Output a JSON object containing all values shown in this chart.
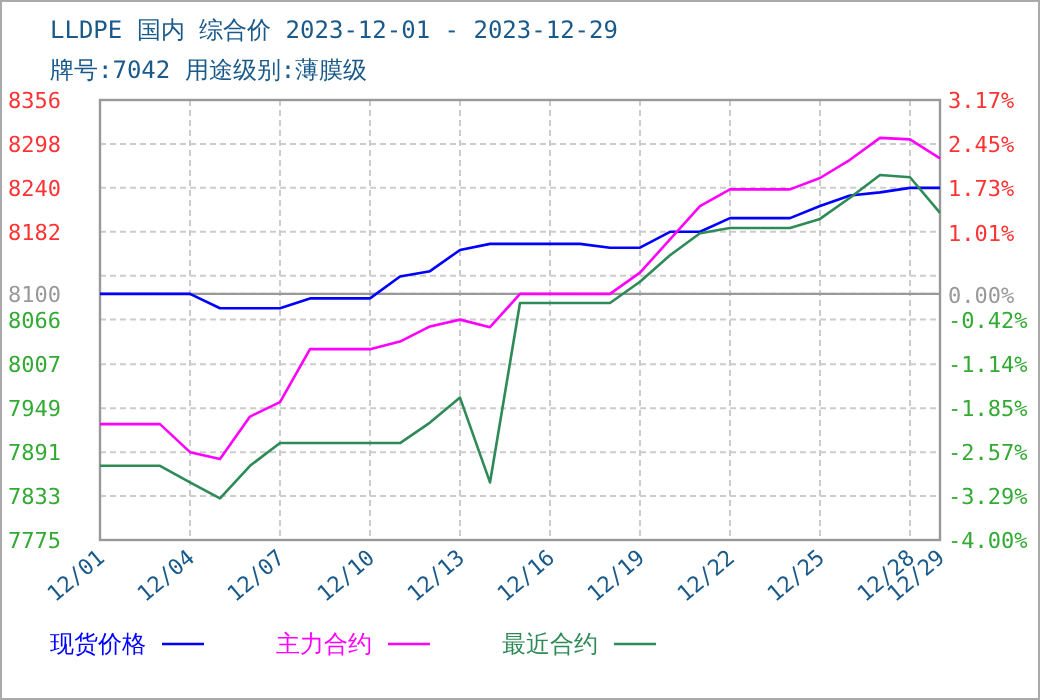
{
  "chart_data": {
    "type": "line",
    "title": "LLDPE 国内 综合价 2023-12-01 - 2023-12-29",
    "subtitle": "牌号:7042 用途级别:薄膜级",
    "x": [
      "2023-12-01",
      "2023-12-02",
      "2023-12-03",
      "2023-12-04",
      "2023-12-05",
      "2023-12-06",
      "2023-12-07",
      "2023-12-08",
      "2023-12-09",
      "2023-12-10",
      "2023-12-11",
      "2023-12-12",
      "2023-12-13",
      "2023-12-14",
      "2023-12-15",
      "2023-12-16",
      "2023-12-17",
      "2023-12-18",
      "2023-12-19",
      "2023-12-20",
      "2023-12-21",
      "2023-12-22",
      "2023-12-23",
      "2023-12-24",
      "2023-12-25",
      "2023-12-26",
      "2023-12-27",
      "2023-12-28",
      "2023-12-29"
    ],
    "series": [
      {
        "name": "现货价格",
        "color": "#0000ff",
        "values": [
          8100,
          8100,
          8100,
          8100,
          8081,
          8081,
          8081,
          8094,
          8094,
          8094,
          8123,
          8130,
          8158,
          8166,
          8166,
          8166,
          8166,
          8161,
          8161,
          8182,
          8182,
          8200,
          8200,
          8200,
          8216,
          8230,
          8234,
          8240,
          8240
        ]
      },
      {
        "name": "主力合约",
        "color": "#ff00ff",
        "values": [
          7928,
          7928,
          7928,
          7891,
          7882,
          7938,
          7957,
          8027,
          8027,
          8027,
          8037,
          8057,
          8066,
          8056,
          8100,
          8100,
          8100,
          8100,
          8128,
          8172,
          8216,
          8238,
          8238,
          8238,
          8253,
          8277,
          8306,
          8304,
          8279
        ]
      },
      {
        "name": "最近合约",
        "color": "#2e8b57",
        "values": [
          7873,
          7873,
          7873,
          7851,
          7830,
          7873,
          7903,
          7903,
          7903,
          7903,
          7903,
          7930,
          7963,
          7851,
          8088,
          8088,
          8088,
          8088,
          8116,
          8151,
          8180,
          8187,
          8187,
          8187,
          8199,
          8227,
          8257,
          8254,
          8207
        ]
      }
    ],
    "xlim": [
      "2023-12-01",
      "2023-12-29"
    ],
    "xticks": [
      {
        "value": "2023-12-01",
        "label": "12/01"
      },
      {
        "value": "2023-12-04",
        "label": "12/04"
      },
      {
        "value": "2023-12-07",
        "label": "12/07"
      },
      {
        "value": "2023-12-10",
        "label": "12/10"
      },
      {
        "value": "2023-12-13",
        "label": "12/13"
      },
      {
        "value": "2023-12-16",
        "label": "12/16"
      },
      {
        "value": "2023-12-19",
        "label": "12/19"
      },
      {
        "value": "2023-12-22",
        "label": "12/22"
      },
      {
        "value": "2023-12-25",
        "label": "12/25"
      },
      {
        "value": "2023-12-28",
        "label": "12/28"
      },
      {
        "value": "2023-12-29",
        "label": "12/29"
      }
    ],
    "ylim": [
      7775,
      8356
    ],
    "yticks": [
      7775,
      7833,
      7891,
      7949,
      8007,
      8066,
      8100,
      {
        "value": 8124,
        "label": null
      },
      8182,
      8240,
      8298,
      8356
    ],
    "y2lim": [
      -4.0,
      3.17
    ],
    "y2ticks": [
      {
        "value": -4.0,
        "label": "-4.00%"
      },
      {
        "value": -3.29,
        "label": "-3.29%"
      },
      {
        "value": -2.57,
        "label": "-2.57%"
      },
      {
        "value": -1.85,
        "label": "-1.85%"
      },
      {
        "value": -1.14,
        "label": "-1.14%"
      },
      {
        "value": -0.42,
        "label": "-0.42%"
      },
      {
        "value": 0,
        "label": "0.00%"
      },
      {
        "value": 1.01,
        "label": "1.01%"
      },
      {
        "value": 1.73,
        "label": "1.73%"
      },
      {
        "value": 2.45,
        "label": "2.45%"
      },
      {
        "value": 3.17,
        "label": "3.17%"
      }
    ],
    "ref_lines": [
      {
        "axis": "y",
        "value": 8100,
        "color": "#999999"
      }
    ],
    "grid": true,
    "legend": "bottom",
    "marker": "none",
    "line_style": "solid"
  }
}
